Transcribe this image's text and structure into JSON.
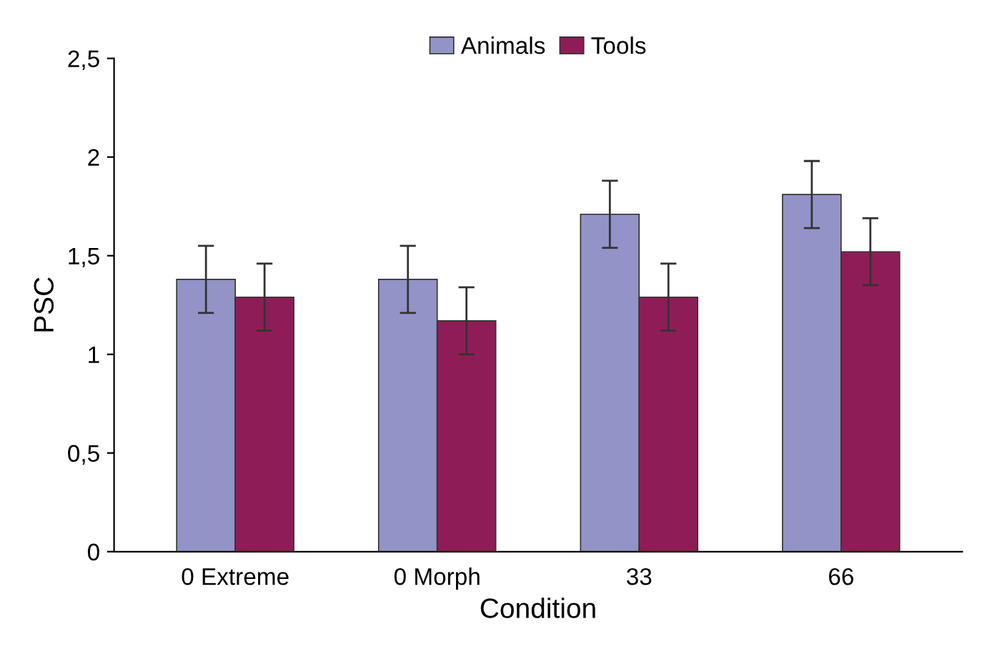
{
  "chart_data": {
    "type": "bar",
    "xlabel": "Condition",
    "ylabel": "PSC",
    "categories": [
      "0 Extreme",
      "0 Morph",
      "33",
      "66"
    ],
    "series": [
      {
        "name": "Animals",
        "color": "#9393c8",
        "values": [
          1.38,
          1.38,
          1.71,
          1.81
        ],
        "errors": [
          0.17,
          0.17,
          0.17,
          0.17
        ]
      },
      {
        "name": "Tools",
        "color": "#8e1d57",
        "values": [
          1.29,
          1.17,
          1.29,
          1.52
        ],
        "errors": [
          0.17,
          0.17,
          0.17,
          0.17
        ]
      }
    ],
    "ylim": [
      0,
      2.5
    ],
    "yticks": [
      0,
      {
        "value": 0.5,
        "label": "0,5"
      },
      1,
      {
        "value": 1.5,
        "label": "1,5"
      },
      2,
      {
        "value": 2.5,
        "label": "2,5"
      }
    ],
    "grid": false,
    "legend": "top"
  }
}
